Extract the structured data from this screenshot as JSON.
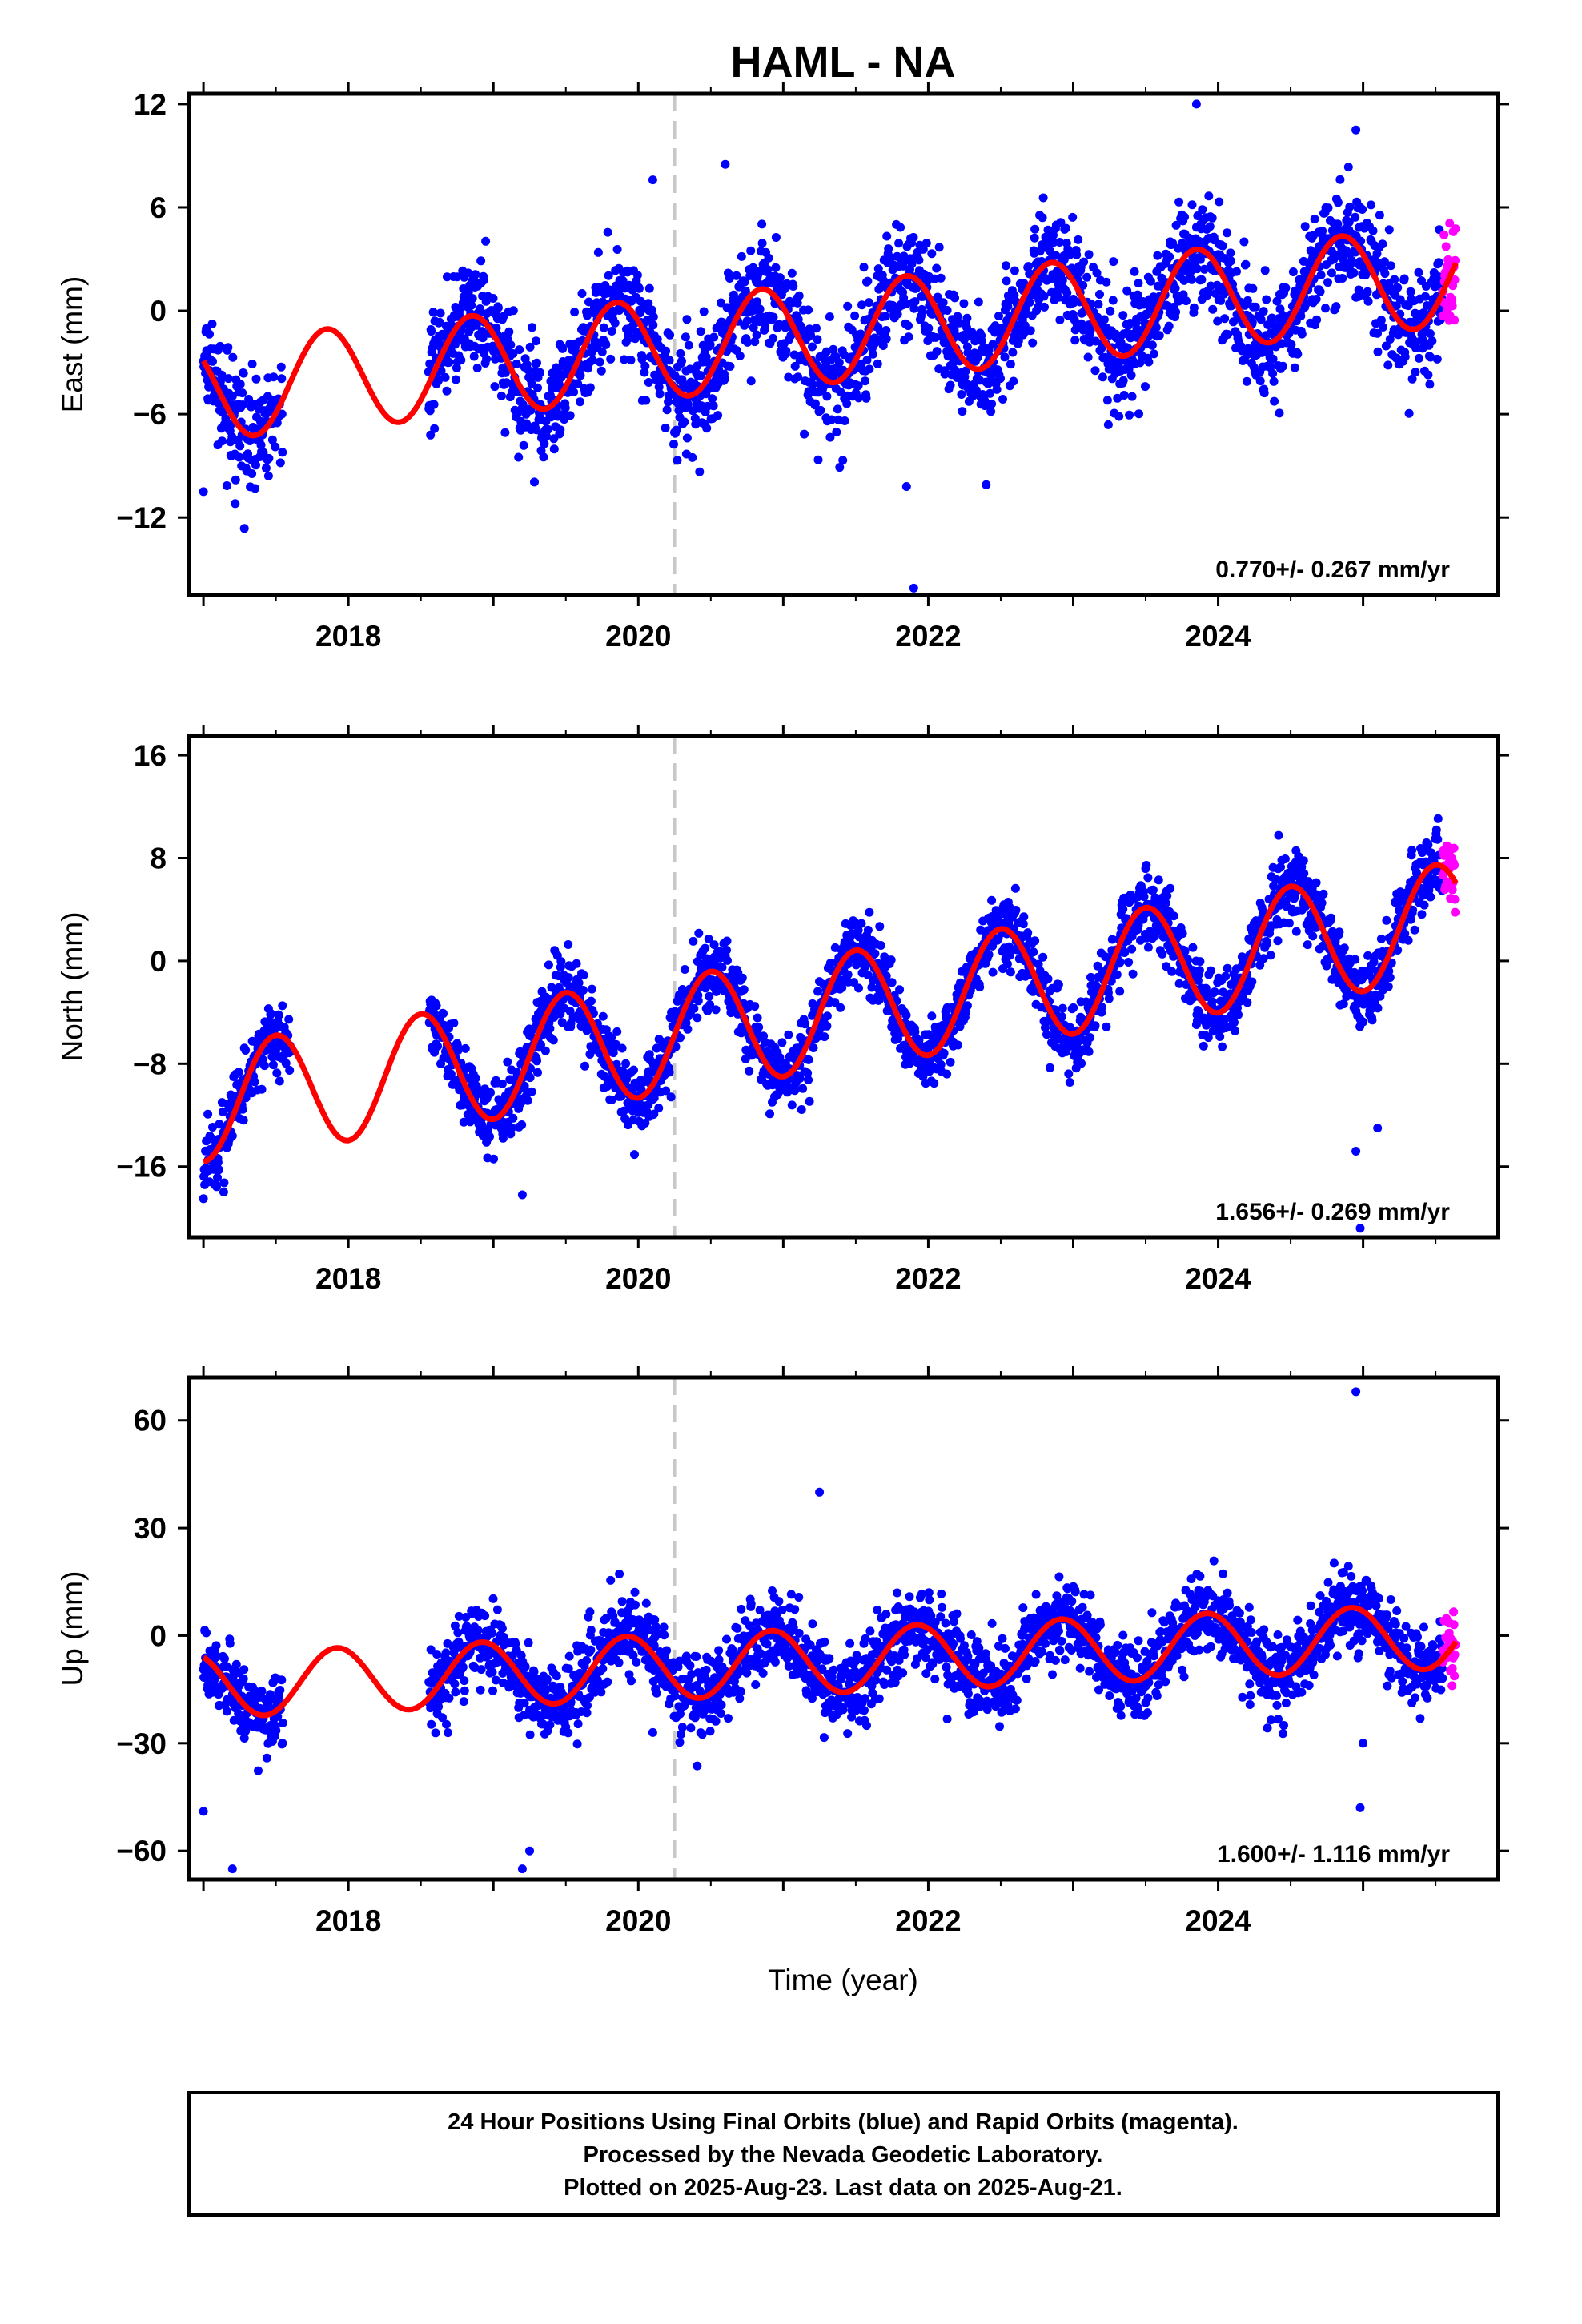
{
  "title": "HAML - NA",
  "xlabel": "Time (year)",
  "footer": {
    "line1": "24 Hour Positions Using Final Orbits (blue) and Rapid Orbits (magenta).",
    "line2": "Processed by the Nevada Geodetic Laboratory.",
    "line3": "Plotted on 2025-Aug-23. Last data on 2025-Aug-21."
  },
  "colors": {
    "final": "#0000ff",
    "rapid": "#ff00ff",
    "model": "#ff0000",
    "event": "#c8c8c8"
  },
  "chart_data": [
    {
      "type": "scatter",
      "ylabel": "East (mm)",
      "rate": "0.770+/- 0.267 mm/yr",
      "xlim": [
        2016.9,
        2025.93
      ],
      "ylim": [
        -16.5,
        12.6
      ],
      "xticks": [
        2018,
        2020,
        2022,
        2024
      ],
      "yticks": [
        -12,
        -6,
        0,
        6,
        12
      ],
      "event_x": 2020.25,
      "data_start": 2017.0,
      "rapid_start": 2025.55,
      "data_end": 2025.64,
      "gaps": [
        [
          2017.55,
          2018.55
        ]
      ],
      "rate_mm_yr": 0.77,
      "offset": -1.3,
      "annual_amp": 2.9,
      "annual_phase_peak": 0.85,
      "scatter_sd": 1.6,
      "outliers": [
        [
          2017.0,
          -10.5
        ],
        [
          2021.9,
          -16.1
        ],
        [
          2023.85,
          12.0
        ],
        [
          2024.95,
          10.5
        ],
        [
          2020.6,
          8.5
        ],
        [
          2020.1,
          7.6
        ],
        [
          2021.85,
          -10.2
        ],
        [
          2022.4,
          -10.1
        ]
      ],
      "series": [
        {
          "name": "Final Orbits",
          "role": "final"
        },
        {
          "name": "Rapid Orbits",
          "role": "rapid"
        }
      ]
    },
    {
      "type": "scatter",
      "ylabel": "North (mm)",
      "rate": "1.656+/- 0.269 mm/yr",
      "xlim": [
        2016.9,
        2025.93
      ],
      "ylim": [
        -21.5,
        17.5
      ],
      "xticks": [
        2018,
        2020,
        2022,
        2024
      ],
      "yticks": [
        -16,
        -8,
        0,
        8,
        16
      ],
      "event_x": 2020.25,
      "data_start": 2017.0,
      "rapid_start": 2025.55,
      "data_end": 2025.64,
      "gaps": [
        [
          2017.6,
          2018.55
        ]
      ],
      "rate_mm_yr": 1.656,
      "offset": -4.0,
      "annual_amp": 4.5,
      "annual_phase_peak": 0.5,
      "scatter_sd": 1.4,
      "outliers": [
        [
          2017.0,
          -18.5
        ],
        [
          2019.2,
          -18.2
        ],
        [
          2024.95,
          -14.8
        ],
        [
          2025.1,
          -13.0
        ],
        [
          2020.0,
          -11.8
        ],
        [
          2024.98,
          -20.8
        ]
      ],
      "series": [
        {
          "name": "Final Orbits",
          "role": "final"
        },
        {
          "name": "Rapid Orbits",
          "role": "rapid"
        }
      ]
    },
    {
      "type": "scatter",
      "ylabel": "Up (mm)",
      "rate": "1.600+/- 1.116 mm/yr",
      "xlim": [
        2016.9,
        2025.93
      ],
      "ylim": [
        -68,
        72
      ],
      "xticks": [
        2018,
        2020,
        2022,
        2024
      ],
      "yticks": [
        -60,
        -30,
        0,
        30,
        60
      ],
      "event_x": 2020.25,
      "data_start": 2017.0,
      "rapid_start": 2025.55,
      "data_end": 2025.64,
      "gaps": [
        [
          2017.55,
          2018.55
        ]
      ],
      "rate_mm_yr": 1.6,
      "offset": -7.0,
      "annual_amp": 9.0,
      "annual_phase_peak": 0.92,
      "scatter_sd": 5.5,
      "outliers": [
        [
          2024.95,
          68
        ],
        [
          2021.25,
          40
        ],
        [
          2017.2,
          -65
        ],
        [
          2019.2,
          -65
        ],
        [
          2019.25,
          -60
        ],
        [
          2017.0,
          -49
        ],
        [
          2024.98,
          -48
        ],
        [
          2025.0,
          -30
        ],
        [
          2020.1,
          -27
        ]
      ],
      "series": [
        {
          "name": "Final Orbits",
          "role": "final"
        },
        {
          "name": "Rapid Orbits",
          "role": "rapid"
        }
      ]
    }
  ]
}
